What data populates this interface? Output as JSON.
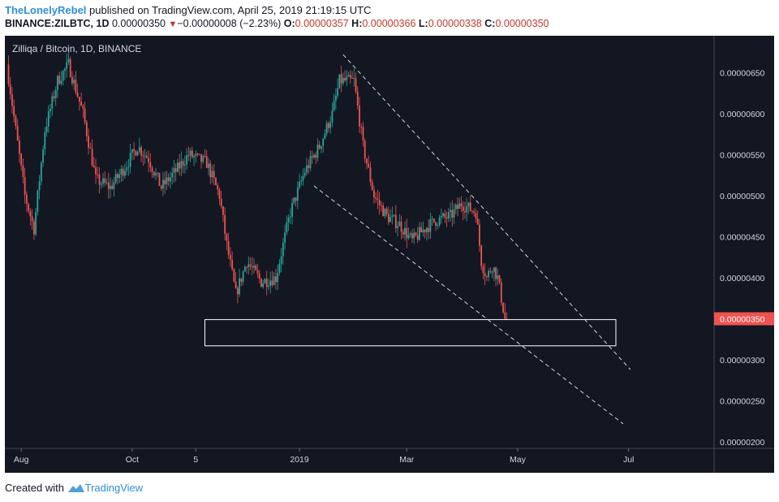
{
  "header": {
    "author": "TheLonelyRebel",
    "published": "published on TradingView.com, April 25, 2019 21:19:15 UTC",
    "symbol": "BINANCE:ZILBTC, 1D",
    "last": "0.00000350",
    "change": "−0.00000008 (−2.23%)",
    "open_label": "O:",
    "open": "0.00000357",
    "high_label": "H:",
    "high": "0.00000366",
    "low_label": "L:",
    "low": "0.00000338",
    "close_label": "C:",
    "close": "0.00000350"
  },
  "footer": {
    "created_with": "Created with",
    "brand": "TradingView"
  },
  "colors": {
    "background": "#131722",
    "up": "#26a69a",
    "down": "#ef5350",
    "channel": "#d1d4dc",
    "box": "#ffffff"
  },
  "chart_data": {
    "type": "candlestick",
    "title": "Zilliqa / Bitcoin, 1D, BINANCE",
    "y_ticks": [
      "0.00000650",
      "0.00000600",
      "0.00000550",
      "0.00000500",
      "0.00000450",
      "0.00000400",
      "0.00000300",
      "0.00000250",
      "0.00000200"
    ],
    "y_range": [
      1.92e-06,
      6.95e-06
    ],
    "last_price_label": "0.00000350",
    "x_ticks": [
      {
        "label": "Aug",
        "date": "2018-08-01"
      },
      {
        "label": "Oct",
        "date": "2018-10-01"
      },
      {
        "label": "5",
        "date": "2018-11-05"
      },
      {
        "label": "2019",
        "date": "2019-01-01"
      },
      {
        "label": "Mar",
        "date": "2019-03-01"
      },
      {
        "label": "May",
        "date": "2019-05-01"
      },
      {
        "label": "Jul",
        "date": "2019-07-01"
      }
    ],
    "x_range": [
      "2018-07-23",
      "2019-08-17"
    ],
    "price_path": [
      [
        "2018-07-25",
        6.6e-06
      ],
      [
        "2018-08-04",
        5e-06
      ],
      [
        "2018-08-09",
        4.6e-06
      ],
      [
        "2018-08-15",
        5.8e-06
      ],
      [
        "2018-08-22",
        6.4e-06
      ],
      [
        "2018-08-28",
        6.6e-06
      ],
      [
        "2018-09-05",
        6e-06
      ],
      [
        "2018-09-12",
        5.2e-06
      ],
      [
        "2018-09-20",
        5.1e-06
      ],
      [
        "2018-09-28",
        5.35e-06
      ],
      [
        "2018-10-05",
        5.6e-06
      ],
      [
        "2018-10-11",
        5.45e-06
      ],
      [
        "2018-10-18",
        5.1e-06
      ],
      [
        "2018-10-26",
        5.3e-06
      ],
      [
        "2018-11-02",
        5.5e-06
      ],
      [
        "2018-11-12",
        5.4e-06
      ],
      [
        "2018-11-19",
        5e-06
      ],
      [
        "2018-11-23",
        4.4e-06
      ],
      [
        "2018-11-28",
        3.8e-06
      ],
      [
        "2018-12-04",
        4.2e-06
      ],
      [
        "2018-12-12",
        3.95e-06
      ],
      [
        "2018-12-20",
        4e-06
      ],
      [
        "2018-12-28",
        4.8e-06
      ],
      [
        "2019-01-05",
        5.3e-06
      ],
      [
        "2019-01-13",
        5.6e-06
      ],
      [
        "2019-01-20",
        6e-06
      ],
      [
        "2019-01-24",
        6.4e-06
      ],
      [
        "2019-02-01",
        6.4e-06
      ],
      [
        "2019-02-06",
        5.6e-06
      ],
      [
        "2019-02-12",
        5e-06
      ],
      [
        "2019-02-19",
        4.75e-06
      ],
      [
        "2019-02-26",
        4.65e-06
      ],
      [
        "2019-03-05",
        4.45e-06
      ],
      [
        "2019-03-12",
        4.6e-06
      ],
      [
        "2019-03-18",
        4.7e-06
      ],
      [
        "2019-03-26",
        4.75e-06
      ],
      [
        "2019-04-01",
        4.9e-06
      ],
      [
        "2019-04-05",
        4.85e-06
      ],
      [
        "2019-04-09",
        4.8e-06
      ],
      [
        "2019-04-12",
        4.2e-06
      ],
      [
        "2019-04-15",
        4e-06
      ],
      [
        "2019-04-18",
        4.15e-06
      ],
      [
        "2019-04-21",
        4e-06
      ],
      [
        "2019-04-25",
        3.5e-06
      ]
    ],
    "candle_range": [
      "2018-07-25",
      "2019-04-25"
    ],
    "channel_upper": [
      [
        "2019-01-25",
        6.72e-06
      ],
      [
        "2019-07-02",
        2.88e-06
      ]
    ],
    "channel_lower": [
      [
        "2019-01-09",
        5.12e-06
      ],
      [
        "2019-06-28",
        2.22e-06
      ]
    ],
    "support_zone": {
      "from": "2018-11-10",
      "to": "2019-06-24",
      "low": 3.17e-06,
      "high": 3.49e-06
    },
    "grid": false
  }
}
